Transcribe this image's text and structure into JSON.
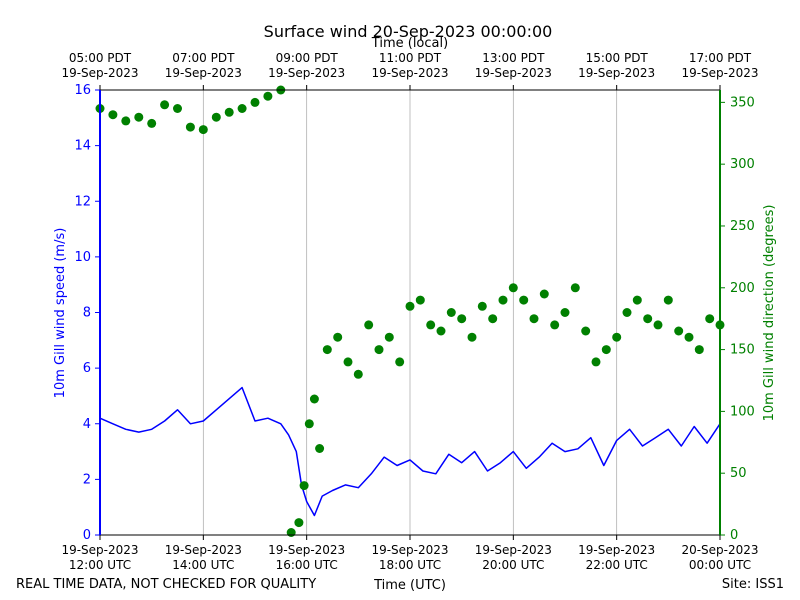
{
  "title": "Surface wind 20-Sep-2023 00:00:00",
  "top_axis_label": "Time (local)",
  "bottom_axis_label": "Time (UTC)",
  "footer_left": "REAL TIME DATA, NOT CHECKED FOR QUALITY",
  "footer_right": "Site: ISS1",
  "colors": {
    "speed": "#0000ff",
    "direction": "#008000",
    "grid": "#b0b0b0",
    "axis": "#000000"
  },
  "chart_data": {
    "type": "line",
    "title": "Surface wind 20-Sep-2023 00:00:00",
    "x_range_utc_hours": [
      12,
      24
    ],
    "xlabel": "Time (UTC)",
    "x2label": "Time (local)",
    "ylabel": "10m Gill wind speed (m/s)",
    "y2label": "10m Gill wind direction (degrees)",
    "ylim": [
      0,
      16
    ],
    "y2lim": [
      0,
      360
    ],
    "yticks": [
      0,
      2,
      4,
      6,
      8,
      10,
      12,
      14,
      16
    ],
    "y2ticks": [
      0,
      50,
      100,
      150,
      200,
      250,
      300,
      350
    ],
    "grid": "vertical",
    "x_ticks_utc": [
      {
        "value": 12,
        "line1": "19-Sep-2023",
        "line2": "12:00 UTC"
      },
      {
        "value": 14,
        "line1": "19-Sep-2023",
        "line2": "14:00 UTC"
      },
      {
        "value": 16,
        "line1": "19-Sep-2023",
        "line2": "16:00 UTC"
      },
      {
        "value": 18,
        "line1": "19-Sep-2023",
        "line2": "18:00 UTC"
      },
      {
        "value": 20,
        "line1": "19-Sep-2023",
        "line2": "20:00 UTC"
      },
      {
        "value": 22,
        "line1": "19-Sep-2023",
        "line2": "22:00 UTC"
      },
      {
        "value": 24,
        "line1": "20-Sep-2023",
        "line2": "00:00 UTC"
      }
    ],
    "x_ticks_local": [
      {
        "value": 12,
        "line1": "05:00 PDT",
        "line2": "19-Sep-2023"
      },
      {
        "value": 14,
        "line1": "07:00 PDT",
        "line2": "19-Sep-2023"
      },
      {
        "value": 16,
        "line1": "09:00 PDT",
        "line2": "19-Sep-2023"
      },
      {
        "value": 18,
        "line1": "11:00 PDT",
        "line2": "19-Sep-2023"
      },
      {
        "value": 20,
        "line1": "13:00 PDT",
        "line2": "19-Sep-2023"
      },
      {
        "value": 22,
        "line1": "15:00 PDT",
        "line2": "19-Sep-2023"
      },
      {
        "value": 24,
        "line1": "17:00 PDT",
        "line2": "19-Sep-2023"
      }
    ],
    "series": [
      {
        "name": "10m Gill wind speed (m/s)",
        "axis": "left",
        "style": "line",
        "x": [
          12.0,
          12.25,
          12.5,
          12.75,
          13.0,
          13.25,
          13.5,
          13.75,
          14.0,
          14.25,
          14.5,
          14.75,
          15.0,
          15.25,
          15.5,
          15.65,
          15.8,
          15.9,
          16.0,
          16.15,
          16.3,
          16.5,
          16.75,
          17.0,
          17.25,
          17.5,
          17.75,
          18.0,
          18.25,
          18.5,
          18.75,
          19.0,
          19.25,
          19.5,
          19.75,
          20.0,
          20.25,
          20.5,
          20.75,
          21.0,
          21.25,
          21.5,
          21.75,
          22.0,
          22.25,
          22.5,
          22.75,
          23.0,
          23.25,
          23.5,
          23.75,
          24.0
        ],
        "values": [
          4.2,
          4.0,
          3.8,
          3.7,
          3.8,
          4.1,
          4.5,
          4.0,
          4.1,
          4.5,
          4.9,
          5.3,
          4.1,
          4.2,
          4.0,
          3.6,
          3.0,
          1.8,
          1.2,
          0.7,
          1.4,
          1.6,
          1.8,
          1.7,
          2.2,
          2.8,
          2.5,
          2.7,
          2.3,
          2.2,
          2.9,
          2.6,
          3.0,
          2.3,
          2.6,
          3.0,
          2.4,
          2.8,
          3.3,
          3.0,
          3.1,
          3.5,
          2.5,
          3.4,
          3.8,
          3.2,
          3.5,
          3.8,
          3.2,
          3.9,
          3.3,
          4.0
        ]
      },
      {
        "name": "10m Gill wind direction (degrees)",
        "axis": "right",
        "style": "markers",
        "x": [
          12.0,
          12.25,
          12.5,
          12.75,
          13.0,
          13.25,
          13.5,
          13.75,
          14.0,
          14.25,
          14.5,
          14.75,
          15.0,
          15.25,
          15.5,
          15.7,
          15.85,
          15.95,
          16.05,
          16.15,
          16.25,
          16.4,
          16.6,
          16.8,
          17.0,
          17.2,
          17.4,
          17.6,
          17.8,
          18.0,
          18.2,
          18.4,
          18.6,
          18.8,
          19.0,
          19.2,
          19.4,
          19.6,
          19.8,
          20.0,
          20.2,
          20.4,
          20.6,
          20.8,
          21.0,
          21.2,
          21.4,
          21.6,
          21.8,
          22.0,
          22.2,
          22.4,
          22.6,
          22.8,
          23.0,
          23.2,
          23.4,
          23.6,
          23.8,
          24.0
        ],
        "values": [
          345,
          340,
          335,
          338,
          333,
          348,
          345,
          330,
          328,
          338,
          342,
          345,
          350,
          355,
          360,
          2,
          10,
          40,
          90,
          110,
          70,
          150,
          160,
          140,
          130,
          170,
          150,
          160,
          140,
          185,
          190,
          170,
          165,
          180,
          175,
          160,
          185,
          175,
          190,
          200,
          190,
          175,
          195,
          170,
          180,
          200,
          165,
          140,
          150,
          160,
          180,
          190,
          175,
          170,
          190,
          165,
          160,
          150,
          175,
          170
        ]
      }
    ]
  }
}
